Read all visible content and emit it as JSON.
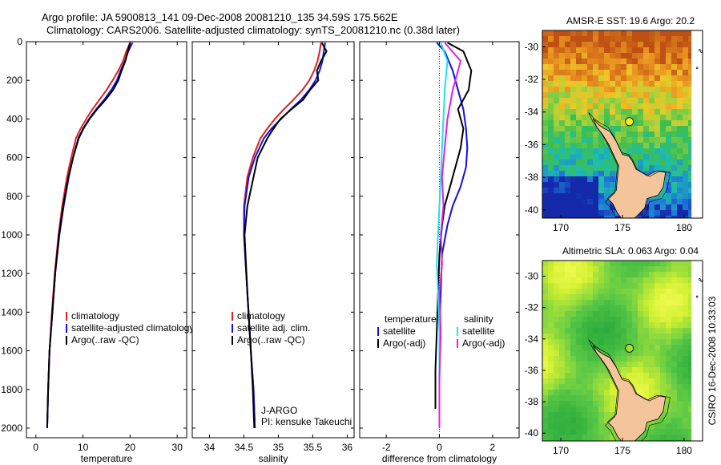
{
  "header": {
    "line1": "Argo profile: JA 5900813_141 09-Dec-2008 20081210_135 34.59S 175.562E",
    "line2": "Climatology: CARS2006. Satellite-adjusted climatology: synTS_20081210.nc (0.38d later)"
  },
  "footer_stamp": "CSIRO 16-Dec-2008 10:33:03",
  "colors": {
    "climatology": "#e02020",
    "satellite": "#1010e0",
    "argo": "#000000",
    "cyan": "#20e0f0",
    "magenta": "#e020e0",
    "land": "#f4c49a"
  },
  "chart_data": [
    {
      "type": "line",
      "id": "temperature",
      "xlabel": "temperature",
      "ylabel": "",
      "xlim": [
        -2,
        32
      ],
      "ylim": [
        2050,
        0
      ],
      "xticks": [
        0,
        10,
        20,
        30
      ],
      "xtick_labels": [
        "0",
        "10",
        "20",
        "30"
      ],
      "yticks": [
        0,
        200,
        400,
        600,
        800,
        1000,
        1200,
        1400,
        1600,
        1800,
        2000
      ],
      "ytick_labels": [
        "0",
        "200",
        "400",
        "600",
        "800",
        "1000",
        "1200",
        "1400",
        "1600",
        "1800",
        "2000"
      ],
      "legend": [
        "climatology",
        "satellite-adjusted climatology",
        "Argo(..raw -QC)"
      ],
      "series": [
        {
          "name": "climatology",
          "color": "climatology",
          "x": [
            20.0,
            19.2,
            18.5,
            17.5,
            16.3,
            15.0,
            13.5,
            12.0,
            10.7,
            9.5,
            8.5,
            7.5,
            6.6,
            5.6,
            4.8,
            4.0,
            3.4,
            2.9,
            2.6,
            2.4
          ],
          "y": [
            5,
            50,
            100,
            150,
            200,
            250,
            300,
            350,
            400,
            450,
            500,
            600,
            700,
            850,
            1000,
            1200,
            1400,
            1600,
            1800,
            2000
          ]
        },
        {
          "name": "satellite-adjusted climatology",
          "color": "satellite",
          "x": [
            20.5,
            19.6,
            18.9,
            18.0,
            17.2,
            16.0,
            14.5,
            12.8,
            11.3,
            10.0,
            9.0,
            7.9,
            7.0,
            5.9,
            5.0,
            4.1,
            3.5,
            2.9,
            2.6,
            2.4
          ],
          "y": [
            5,
            50,
            100,
            150,
            200,
            250,
            300,
            350,
            400,
            450,
            500,
            600,
            700,
            850,
            1000,
            1200,
            1400,
            1600,
            1800,
            2000
          ]
        },
        {
          "name": "Argo(..raw -QC)",
          "color": "argo",
          "x": [
            20.0,
            19.5,
            19.0,
            18.2,
            17.5,
            16.4,
            14.8,
            13.0,
            11.4,
            10.1,
            9.1,
            7.9,
            6.9,
            5.8,
            4.9,
            4.1,
            3.5,
            2.9,
            2.6,
            2.4
          ],
          "y": [
            5,
            50,
            100,
            150,
            200,
            250,
            300,
            350,
            400,
            450,
            500,
            600,
            700,
            850,
            1000,
            1200,
            1400,
            1600,
            1800,
            2000
          ]
        }
      ],
      "annotations": []
    },
    {
      "type": "line",
      "id": "salinity",
      "xlabel": "salinity",
      "ylabel": "",
      "xlim": [
        33.75,
        36.1
      ],
      "ylim": [
        2050,
        0
      ],
      "xticks": [
        34,
        34.5,
        35,
        35.5,
        36
      ],
      "xtick_labels": [
        "34",
        "34.5",
        "35",
        "35.5",
        "36"
      ],
      "legend": [
        "climatology",
        "satellite adj. clim.",
        "Argo(..raw -QC)"
      ],
      "series": [
        {
          "name": "climatology",
          "color": "climatology",
          "x": [
            35.62,
            35.6,
            35.57,
            35.52,
            35.45,
            35.35,
            35.22,
            35.08,
            34.95,
            34.84,
            34.74,
            34.63,
            34.55,
            34.5,
            34.5,
            34.55,
            34.6,
            34.64,
            34.66
          ],
          "y": [
            5,
            50,
            100,
            150,
            200,
            250,
            300,
            350,
            400,
            450,
            500,
            600,
            700,
            850,
            1000,
            1300,
            1600,
            1800,
            2000
          ]
        },
        {
          "name": "satellite adj. clim.",
          "color": "satellite",
          "x": [
            35.68,
            35.66,
            35.64,
            35.6,
            35.54,
            35.45,
            35.33,
            35.18,
            35.04,
            34.9,
            34.79,
            34.66,
            34.57,
            34.51,
            34.5,
            34.55,
            34.6,
            34.64,
            34.66
          ],
          "y": [
            5,
            50,
            100,
            150,
            200,
            250,
            300,
            350,
            400,
            450,
            500,
            600,
            700,
            850,
            1000,
            1300,
            1600,
            1800,
            2000
          ]
        },
        {
          "name": "Argo(..raw -QC)",
          "color": "argo",
          "x": [
            35.63,
            35.7,
            35.62,
            35.56,
            35.58,
            35.46,
            35.36,
            35.19,
            35.03,
            34.93,
            34.84,
            34.7,
            34.64,
            34.55,
            34.51,
            34.55,
            34.6,
            34.63,
            34.65
          ],
          "y": [
            5,
            50,
            100,
            150,
            200,
            250,
            300,
            350,
            400,
            450,
            500,
            600,
            700,
            850,
            1000,
            1300,
            1600,
            1800,
            2000
          ]
        }
      ],
      "annotations": [
        "J-ARGO",
        "PI: kensuke Takeuchi"
      ]
    },
    {
      "type": "line",
      "id": "difference",
      "xlabel": "difference from climatology",
      "ylabel": "",
      "xlim": [
        -3.0,
        3.0
      ],
      "ylim": [
        2050,
        0
      ],
      "xticks": [
        -2,
        0,
        2
      ],
      "xtick_labels": [
        "-2",
        "0",
        "2"
      ],
      "legend_groups": [
        {
          "title": "temperature",
          "entries": [
            "satellite",
            "Argo(-adj)"
          ]
        },
        {
          "title": "salinity",
          "entries": [
            "satellite",
            "Argo(-adj)"
          ]
        }
      ],
      "series": [
        {
          "name": "temperature satellite",
          "color": "satellite",
          "x": [
            -0.1,
            0.2,
            0.5,
            0.7,
            0.9,
            1.0,
            1.05,
            1.0,
            0.8,
            0.5,
            0.3,
            0.1,
            0.05,
            0.0,
            0.0,
            0.0
          ],
          "y": [
            5,
            50,
            150,
            250,
            350,
            450,
            550,
            650,
            750,
            850,
            950,
            1100,
            1300,
            1500,
            1700,
            2000
          ]
        },
        {
          "name": "temperature Argo(-adj)",
          "color": "argo",
          "x": [
            0.3,
            0.9,
            1.2,
            1.1,
            0.7,
            0.9,
            0.8,
            0.6,
            0.4,
            0.2,
            0.1,
            0.0,
            -0.05,
            -0.1,
            -0.15,
            -0.15
          ],
          "y": [
            5,
            50,
            150,
            250,
            350,
            450,
            550,
            650,
            750,
            850,
            950,
            1100,
            1300,
            1500,
            1700,
            1900
          ]
        },
        {
          "name": "salinity satellite",
          "color": "cyan",
          "x": [
            0.05,
            0.3,
            0.2,
            0.15,
            0.1,
            0.05,
            0.0,
            -0.05,
            -0.1,
            -0.05,
            0.0,
            0.0,
            0.0
          ],
          "y": [
            5,
            100,
            250,
            400,
            550,
            700,
            850,
            1000,
            1150,
            1300,
            1500,
            1750,
            2000
          ]
        },
        {
          "name": "salinity Argo(-adj)",
          "color": "magenta",
          "x": [
            0.2,
            0.8,
            0.5,
            0.3,
            0.2,
            0.1,
            0.15,
            0.05,
            0.1,
            0.0,
            0.05,
            0.0,
            0.0
          ],
          "y": [
            5,
            100,
            250,
            400,
            550,
            700,
            850,
            1000,
            1150,
            1300,
            1500,
            1750,
            2000
          ]
        }
      ]
    },
    {
      "type": "heatmap",
      "id": "sst-map",
      "title": "AMSR-E SST: 19.6  Argo: 20.2",
      "xlim": [
        168.5,
        181.5
      ],
      "ylim": [
        -40.5,
        -29.0
      ],
      "xticks": [
        170,
        175,
        180
      ],
      "xtick_labels": [
        "170",
        "175",
        "180"
      ],
      "yticks": [
        -30,
        -32,
        -34,
        -36,
        -38,
        -40
      ],
      "ytick_labels": [
        "-30",
        "-32",
        "-34",
        "-36",
        "-38",
        "-40"
      ],
      "argo_position": {
        "lon": 175.562,
        "lat": -34.59
      }
    },
    {
      "type": "heatmap",
      "id": "sla-map",
      "title": "Altimetric SLA: 0.063  Argo: 0.04",
      "xlim": [
        168.5,
        181.5
      ],
      "ylim": [
        -40.5,
        -29.0
      ],
      "xticks": [
        170,
        175,
        180
      ],
      "xtick_labels": [
        "170",
        "175",
        "180"
      ],
      "yticks": [
        -30,
        -32,
        -34,
        -36,
        -38,
        -40
      ],
      "ytick_labels": [
        "-30",
        "-32",
        "-34",
        "-36",
        "-38",
        "-40"
      ],
      "argo_position": {
        "lon": 175.562,
        "lat": -34.59
      }
    }
  ]
}
